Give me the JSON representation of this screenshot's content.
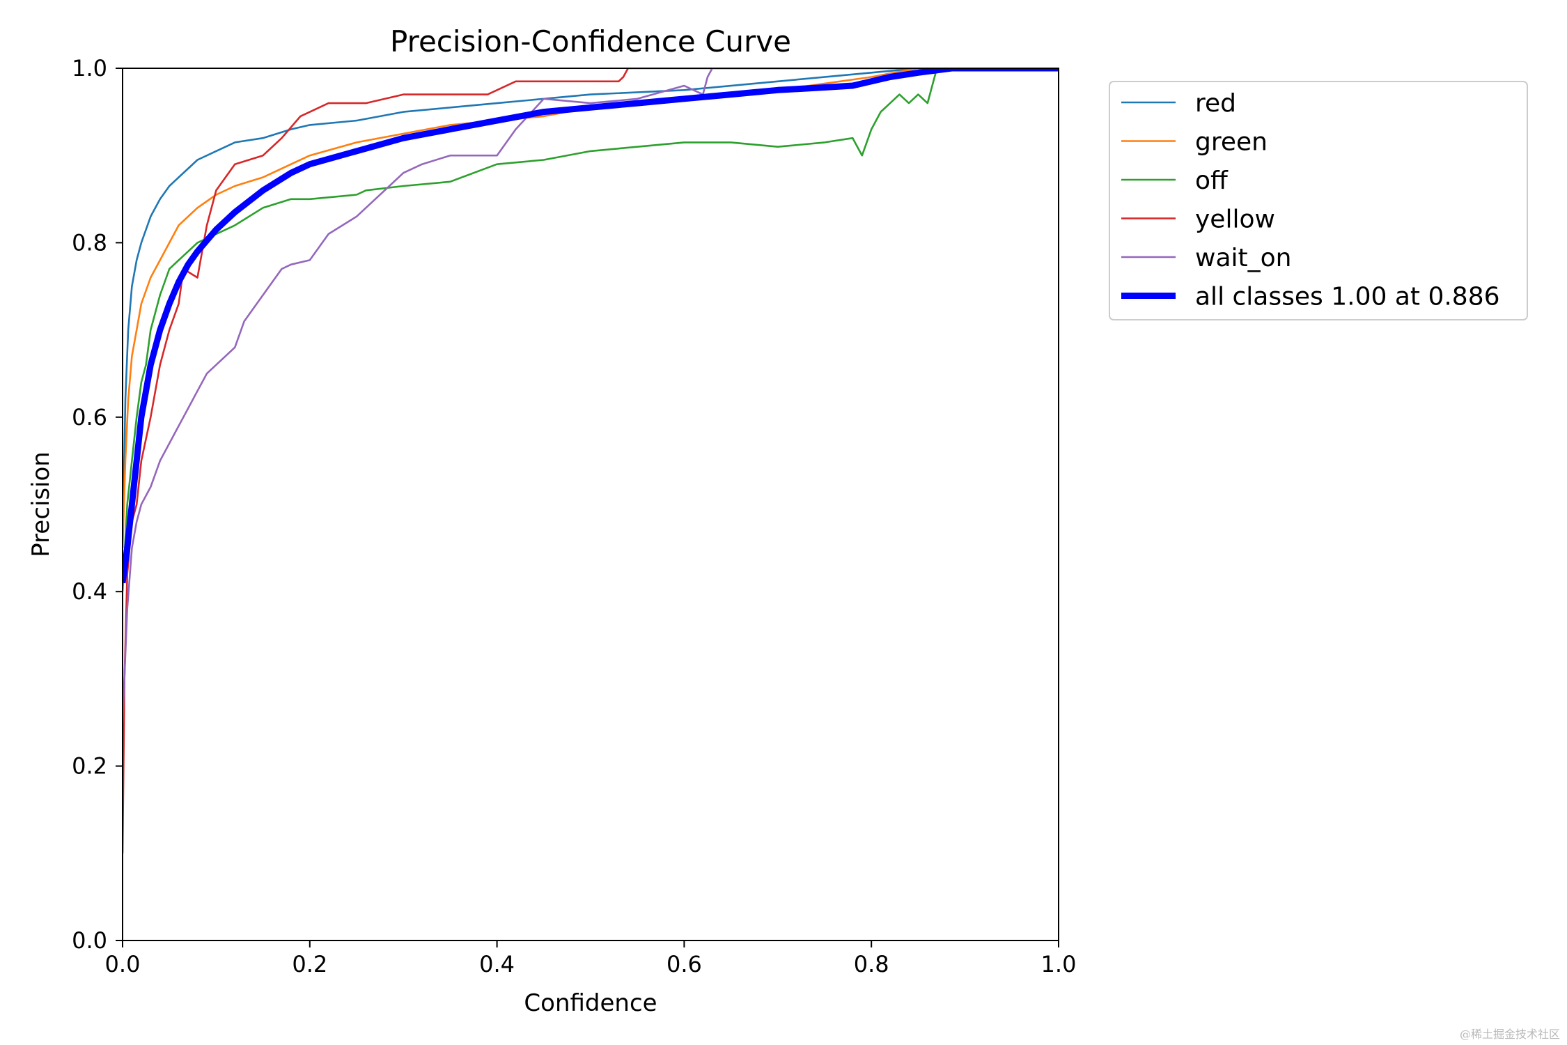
{
  "chart_data": {
    "type": "line",
    "title": "Precision-Confidence Curve",
    "xlabel": "Confidence",
    "ylabel": "Precision",
    "xlim": [
      0,
      1
    ],
    "ylim": [
      0,
      1
    ],
    "xticks": [
      "0.0",
      "0.2",
      "0.4",
      "0.6",
      "0.8",
      "1.0"
    ],
    "yticks": [
      "0.0",
      "0.2",
      "0.4",
      "0.6",
      "0.8",
      "1.0"
    ],
    "grid": false,
    "legend_position": "outside-top-right",
    "series": [
      {
        "name": "red",
        "color": "#1f77b4",
        "linewidth": "thin",
        "x": [
          0.0,
          0.003,
          0.006,
          0.01,
          0.015,
          0.02,
          0.03,
          0.04,
          0.05,
          0.06,
          0.07,
          0.08,
          0.1,
          0.12,
          0.15,
          0.18,
          0.2,
          0.25,
          0.3,
          0.35,
          0.4,
          0.5,
          0.6,
          0.7,
          0.8,
          0.85,
          0.9,
          1.0
        ],
        "y": [
          0.45,
          0.62,
          0.7,
          0.75,
          0.78,
          0.8,
          0.83,
          0.85,
          0.865,
          0.875,
          0.885,
          0.895,
          0.905,
          0.915,
          0.92,
          0.93,
          0.935,
          0.94,
          0.95,
          0.955,
          0.96,
          0.97,
          0.975,
          0.985,
          0.995,
          1.0,
          1.0,
          1.0
        ]
      },
      {
        "name": "green",
        "color": "#ff7f0e",
        "linewidth": "thin",
        "x": [
          0.0,
          0.003,
          0.006,
          0.01,
          0.015,
          0.02,
          0.03,
          0.04,
          0.05,
          0.06,
          0.07,
          0.08,
          0.1,
          0.12,
          0.15,
          0.18,
          0.2,
          0.25,
          0.3,
          0.35,
          0.4,
          0.45,
          0.5,
          0.6,
          0.7,
          0.8,
          0.85,
          0.9,
          1.0
        ],
        "y": [
          0.45,
          0.55,
          0.62,
          0.67,
          0.7,
          0.73,
          0.76,
          0.78,
          0.8,
          0.82,
          0.83,
          0.84,
          0.855,
          0.865,
          0.875,
          0.89,
          0.9,
          0.915,
          0.925,
          0.935,
          0.94,
          0.945,
          0.955,
          0.965,
          0.975,
          0.99,
          1.0,
          1.0,
          1.0
        ]
      },
      {
        "name": "off",
        "color": "#2ca02c",
        "linewidth": "thin",
        "x": [
          0.0,
          0.005,
          0.01,
          0.015,
          0.02,
          0.025,
          0.03,
          0.04,
          0.05,
          0.06,
          0.07,
          0.08,
          0.1,
          0.12,
          0.15,
          0.18,
          0.2,
          0.25,
          0.26,
          0.3,
          0.35,
          0.4,
          0.45,
          0.5,
          0.55,
          0.6,
          0.65,
          0.7,
          0.75,
          0.78,
          0.79,
          0.8,
          0.81,
          0.82,
          0.83,
          0.84,
          0.85,
          0.86,
          0.87,
          0.9,
          1.0
        ],
        "y": [
          0.4,
          0.5,
          0.55,
          0.6,
          0.64,
          0.66,
          0.7,
          0.74,
          0.77,
          0.78,
          0.79,
          0.8,
          0.81,
          0.82,
          0.84,
          0.85,
          0.85,
          0.855,
          0.86,
          0.865,
          0.87,
          0.89,
          0.895,
          0.905,
          0.91,
          0.915,
          0.915,
          0.91,
          0.915,
          0.92,
          0.9,
          0.93,
          0.95,
          0.96,
          0.97,
          0.96,
          0.97,
          0.96,
          1.0,
          1.0,
          1.0
        ]
      },
      {
        "name": "yellow",
        "color": "#d62728",
        "linewidth": "thin",
        "x": [
          0.0,
          0.002,
          0.005,
          0.01,
          0.015,
          0.02,
          0.03,
          0.04,
          0.05,
          0.06,
          0.065,
          0.08,
          0.09,
          0.1,
          0.12,
          0.15,
          0.17,
          0.19,
          0.22,
          0.26,
          0.3,
          0.36,
          0.39,
          0.42,
          0.53,
          0.535,
          0.54,
          0.6,
          0.7,
          0.8,
          1.0
        ],
        "y": [
          0.1,
          0.3,
          0.42,
          0.48,
          0.5,
          0.55,
          0.6,
          0.66,
          0.7,
          0.73,
          0.77,
          0.76,
          0.82,
          0.86,
          0.89,
          0.9,
          0.92,
          0.945,
          0.96,
          0.96,
          0.97,
          0.97,
          0.97,
          0.985,
          0.985,
          0.99,
          1.0,
          1.0,
          1.0,
          1.0,
          1.0
        ]
      },
      {
        "name": "wait_on",
        "color": "#9467bd",
        "linewidth": "thin",
        "x": [
          0.0,
          0.005,
          0.01,
          0.015,
          0.02,
          0.03,
          0.04,
          0.05,
          0.06,
          0.07,
          0.08,
          0.09,
          0.1,
          0.12,
          0.13,
          0.15,
          0.17,
          0.18,
          0.2,
          0.22,
          0.25,
          0.28,
          0.3,
          0.32,
          0.35,
          0.4,
          0.42,
          0.45,
          0.5,
          0.55,
          0.6,
          0.61,
          0.62,
          0.625,
          0.63,
          0.7,
          0.8,
          1.0
        ],
        "y": [
          0.25,
          0.38,
          0.45,
          0.48,
          0.5,
          0.52,
          0.55,
          0.57,
          0.59,
          0.61,
          0.63,
          0.65,
          0.66,
          0.68,
          0.71,
          0.74,
          0.77,
          0.775,
          0.78,
          0.81,
          0.83,
          0.86,
          0.88,
          0.89,
          0.9,
          0.9,
          0.93,
          0.965,
          0.96,
          0.965,
          0.98,
          0.975,
          0.97,
          0.99,
          1.0,
          1.0,
          1.0,
          1.0
        ]
      },
      {
        "name": "all classes 1.00 at 0.886",
        "color": "#0000ff",
        "linewidth": "thick",
        "x": [
          0.0,
          0.005,
          0.01,
          0.015,
          0.02,
          0.03,
          0.04,
          0.05,
          0.06,
          0.07,
          0.08,
          0.1,
          0.12,
          0.15,
          0.18,
          0.2,
          0.25,
          0.3,
          0.35,
          0.4,
          0.45,
          0.5,
          0.55,
          0.6,
          0.65,
          0.7,
          0.75,
          0.78,
          0.8,
          0.82,
          0.85,
          0.886,
          0.9,
          1.0
        ],
        "y": [
          0.41,
          0.45,
          0.5,
          0.55,
          0.6,
          0.66,
          0.7,
          0.73,
          0.755,
          0.775,
          0.79,
          0.815,
          0.835,
          0.86,
          0.88,
          0.89,
          0.905,
          0.92,
          0.93,
          0.94,
          0.95,
          0.955,
          0.96,
          0.965,
          0.97,
          0.975,
          0.978,
          0.98,
          0.985,
          0.99,
          0.995,
          1.0,
          1.0,
          1.0
        ]
      }
    ]
  },
  "watermark": "@稀土掘金技术社区"
}
